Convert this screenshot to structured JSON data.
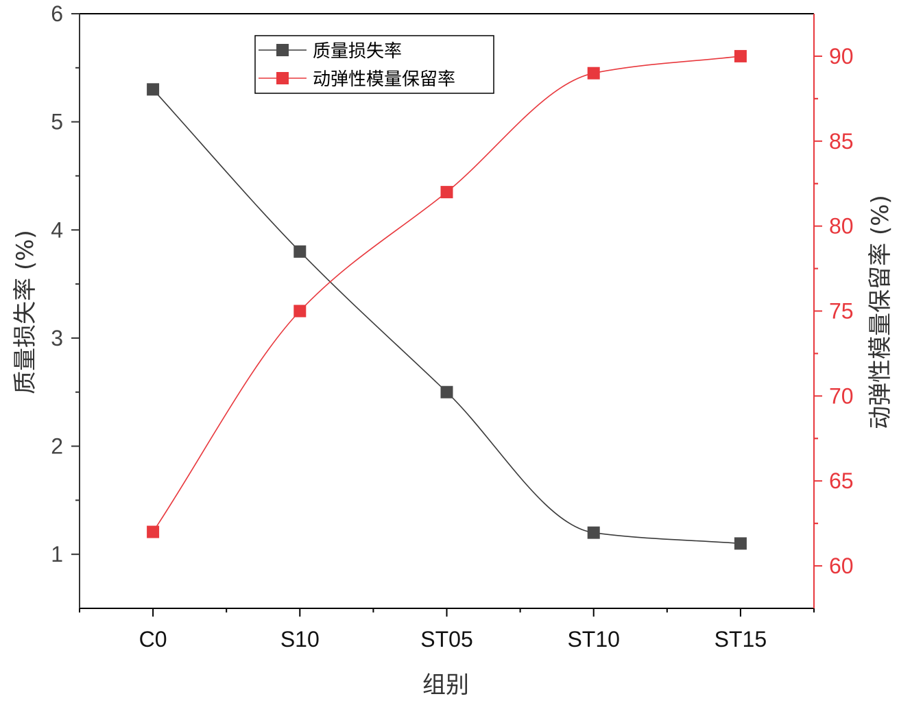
{
  "chart_data": {
    "type": "line",
    "categories": [
      "C0",
      "S10",
      "ST05",
      "ST10",
      "ST15"
    ],
    "xlabel": "组别",
    "ylabel_left": "质量损失率 (%)",
    "ylabel_right": "动弹性模量保留率 (%)",
    "ylim_left": [
      0.5,
      6
    ],
    "yticks_left": [
      1,
      2,
      3,
      4,
      5,
      6
    ],
    "ylim_right": [
      57.5,
      92.5
    ],
    "yticks_right": [
      60,
      65,
      70,
      75,
      80,
      85,
      90
    ],
    "grid": false,
    "legend_position": "top-center",
    "series": [
      {
        "name": "质量损失率",
        "axis": "left",
        "color": "#3a3a3a",
        "marker": "square",
        "values": [
          5.3,
          3.8,
          2.5,
          1.2,
          1.1
        ]
      },
      {
        "name": "动弹性模量保留率",
        "axis": "right",
        "color": "#e8383d",
        "marker": "square",
        "values": [
          62,
          75,
          82,
          89,
          90
        ]
      }
    ]
  },
  "colors": {
    "left_axis": "#333333",
    "right_axis": "#e8383d",
    "frame": "#000000"
  }
}
